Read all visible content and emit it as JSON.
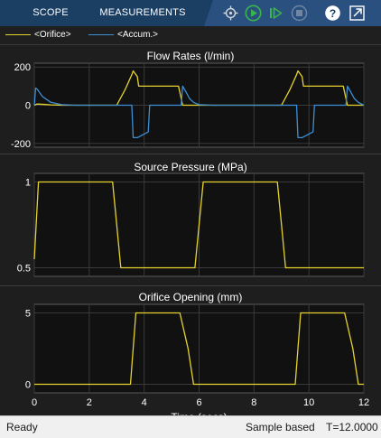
{
  "toolstrip": {
    "tabs": [
      "SCOPE",
      "MEASUREMENTS"
    ]
  },
  "controls": [
    "pointer-icon",
    "run-icon",
    "step-forward-icon",
    "stop-icon",
    "help-icon",
    "undock-icon"
  ],
  "legend": [
    {
      "label": "<Orifice>",
      "color": "#e6d22e"
    },
    {
      "label": "<Accum.>",
      "color": "#3d8fd6"
    }
  ],
  "colors": {
    "orifice": "#e6d22e",
    "accum": "#3d8fd6",
    "axes_bg": "#111111",
    "grid": "#3a3a3a"
  },
  "chart_data": [
    {
      "type": "line",
      "title": "Flow Rates (l/min)",
      "xlim": [
        0,
        12
      ],
      "ylim": [
        -220,
        220
      ],
      "yticks": [
        200,
        0,
        -200
      ],
      "series": [
        {
          "name": "<Orifice>",
          "color": "orifice",
          "x": [
            0,
            0.1,
            0.4,
            0.6,
            1.0,
            1.6,
            3.0,
            3.3,
            3.55,
            3.6,
            3.75,
            3.8,
            4.7,
            5.25,
            5.4,
            6.0,
            6.5,
            9.0,
            9.3,
            9.55,
            9.6,
            9.75,
            9.8,
            10.7,
            11.25,
            11.4,
            12
          ],
          "y": [
            0,
            6,
            4,
            2,
            0,
            0,
            0,
            80,
            160,
            180,
            150,
            100,
            100,
            100,
            0,
            0,
            0,
            0,
            80,
            160,
            180,
            150,
            100,
            100,
            100,
            0,
            0
          ]
        },
        {
          "name": "<Accum.>",
          "color": "accum",
          "x": [
            0,
            0.05,
            0.1,
            0.3,
            0.6,
            1.0,
            1.5,
            3.55,
            3.6,
            3.75,
            4.15,
            4.2,
            5.35,
            5.4,
            5.5,
            5.65,
            5.8,
            6.0,
            6.5,
            9.55,
            9.6,
            9.75,
            10.15,
            10.2,
            11.35,
            11.4,
            11.5,
            11.65,
            11.8,
            12
          ],
          "y": [
            0,
            90,
            85,
            45,
            15,
            3,
            0,
            0,
            -170,
            -170,
            -140,
            0,
            0,
            100,
            75,
            35,
            15,
            3,
            0,
            0,
            -170,
            -170,
            -140,
            0,
            0,
            100,
            75,
            35,
            15,
            0
          ]
        }
      ]
    },
    {
      "type": "line",
      "title": "Source Pressure (MPa)",
      "xlim": [
        0,
        12
      ],
      "ylim": [
        0.45,
        1.05
      ],
      "yticks": [
        1,
        0.5
      ],
      "series": [
        {
          "name": "<Orifice>",
          "color": "orifice",
          "x": [
            0,
            0.15,
            2.85,
            3.0,
            3.15,
            5.85,
            6.0,
            6.15,
            8.85,
            9.0,
            9.15,
            12
          ],
          "y": [
            0.55,
            1.0,
            1.0,
            0.75,
            0.5,
            0.5,
            0.75,
            1.0,
            1.0,
            0.75,
            0.5,
            0.5
          ]
        }
      ]
    },
    {
      "type": "line",
      "title": "Orifice Opening (mm)",
      "xlim": [
        0,
        12
      ],
      "ylim": [
        -0.6,
        5.6
      ],
      "yticks": [
        5,
        0
      ],
      "xticks": [
        0,
        2,
        4,
        6,
        8,
        10,
        12
      ],
      "xlabel": "Time (secs)",
      "series": [
        {
          "name": "<Orifice>",
          "color": "orifice",
          "x": [
            0,
            3.5,
            3.6,
            3.7,
            5.3,
            5.6,
            5.8,
            6.0,
            9.5,
            9.6,
            9.7,
            11.3,
            11.6,
            11.8,
            12
          ],
          "y": [
            0,
            0,
            2.5,
            5,
            5,
            2.5,
            0,
            0,
            0,
            2.5,
            5,
            5,
            2.5,
            0,
            0
          ]
        }
      ]
    }
  ],
  "status": {
    "ready": "Ready",
    "mode": "Sample based",
    "time": "T=12.0000"
  }
}
